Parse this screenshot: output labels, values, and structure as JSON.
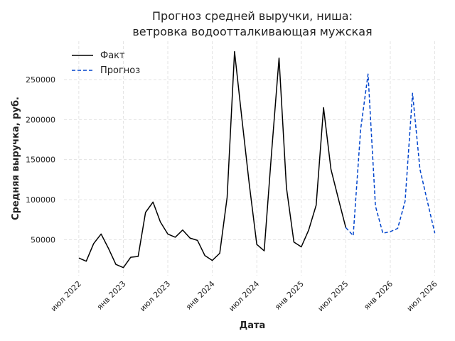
{
  "chart_data": {
    "type": "line",
    "title": [
      "Прогноз средней выручки, ниша:",
      "ветровка водоотталкивающая мужская"
    ],
    "xlabel": "Дата",
    "ylabel": "Средняя выручка, руб.",
    "grid": true,
    "legend_position": "top-left",
    "x_ticks": [
      "2022-07",
      "2023-01",
      "2023-07",
      "2024-01",
      "2024-07",
      "2025-01",
      "2025-07",
      "2026-01",
      "2026-07"
    ],
    "x_tick_labels": [
      "июл 2022",
      "янв 2023",
      "июл 2023",
      "янв 2024",
      "июл 2024",
      "янв 2025",
      "июл 2025",
      "янв 2026",
      "июл 2026"
    ],
    "y_ticks": [
      50000,
      100000,
      150000,
      200000,
      250000
    ],
    "y_tick_labels": [
      "50000",
      "100000",
      "150000",
      "200000",
      "250000"
    ],
    "ylim": [
      5000,
      298000
    ],
    "xlim": [
      "2022-05",
      "2026-08"
    ],
    "series": [
      {
        "name": "Факт",
        "color": "#000000",
        "dash": "solid",
        "x": [
          "2022-07",
          "2022-08",
          "2022-09",
          "2022-10",
          "2022-11",
          "2022-12",
          "2023-01",
          "2023-02",
          "2023-03",
          "2023-04",
          "2023-05",
          "2023-06",
          "2023-07",
          "2023-08",
          "2023-09",
          "2023-10",
          "2023-11",
          "2023-12",
          "2024-01",
          "2024-02",
          "2024-03",
          "2024-04",
          "2024-05",
          "2024-06",
          "2024-07",
          "2024-08",
          "2024-09",
          "2024-10",
          "2024-11",
          "2024-12",
          "2025-01",
          "2025-02",
          "2025-03",
          "2025-04",
          "2025-05",
          "2025-06",
          "2025-07"
        ],
        "values": [
          27000,
          23000,
          45000,
          57000,
          39000,
          19000,
          15000,
          28000,
          29000,
          84000,
          97000,
          72000,
          57000,
          53000,
          62000,
          52000,
          49000,
          30000,
          24000,
          33000,
          103000,
          285000,
          200000,
          118000,
          44000,
          36000,
          160000,
          277000,
          115000,
          47000,
          41000,
          62000,
          93000,
          215000,
          138000,
          101000,
          65000
        ]
      },
      {
        "name": "Прогноз",
        "color": "#0044cc",
        "dash": "dashed",
        "x": [
          "2025-07",
          "2025-08",
          "2025-09",
          "2025-10",
          "2025-11",
          "2025-12",
          "2026-01",
          "2026-02",
          "2026-03",
          "2026-04",
          "2026-05",
          "2026-06",
          "2026-07"
        ],
        "values": [
          65000,
          55000,
          188000,
          257000,
          92000,
          58000,
          60000,
          64000,
          98000,
          233000,
          138000,
          98000,
          58000
        ]
      }
    ]
  }
}
